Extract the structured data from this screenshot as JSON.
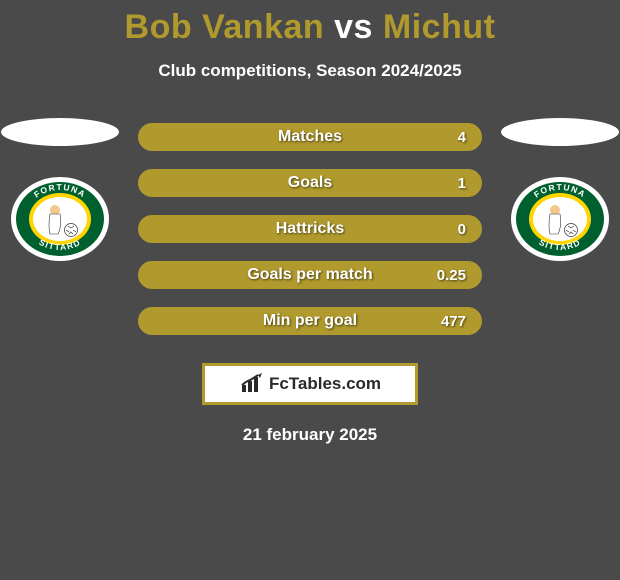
{
  "title": {
    "player1": "Bob Vankan",
    "vs": "vs",
    "player2": "Michut",
    "color1": "#b09a2d",
    "color_vs": "#ffffff",
    "color2": "#b09a2d"
  },
  "subtitle": "Club competitions, Season 2024/2025",
  "accent_color": "#b09a2d",
  "background_color": "#4a4a4a",
  "stats": [
    {
      "label": "Matches",
      "value": "4"
    },
    {
      "label": "Goals",
      "value": "1"
    },
    {
      "label": "Hattricks",
      "value": "0"
    },
    {
      "label": "Goals per match",
      "value": "0.25"
    },
    {
      "label": "Min per goal",
      "value": "477"
    }
  ],
  "badge_text": "FcTables.com",
  "date": "21 february 2025",
  "crest": {
    "outer": "#ffffff",
    "ring": "#005f2f",
    "inner": "#ffd400",
    "ring_text": "FORTUNA SITTARD"
  }
}
